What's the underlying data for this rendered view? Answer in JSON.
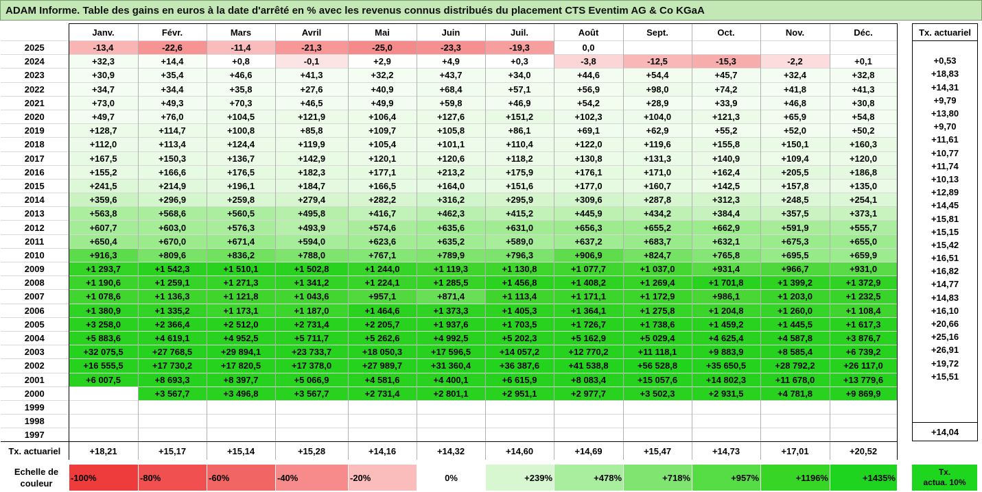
{
  "title": "ADAM Informe. Table des gains en euros à la date d'arrêté en % avec les revenus connus distribués du placement CTS Eventim AG & Co KGaA",
  "chart_data": {
    "type": "table",
    "months": [
      "Janv.",
      "Févr.",
      "Mars",
      "Avril",
      "Mai",
      "Juin",
      "Juil.",
      "Août",
      "Sept.",
      "Oct.",
      "Nov.",
      "Déc."
    ],
    "tx_header": "Tx. actuariel",
    "rows": [
      {
        "year": "2025",
        "cells": [
          "-13,4",
          "-22,6",
          "-11,4",
          "-21,3",
          "-25,0",
          "-23,3",
          "-19,3",
          "0,0",
          "",
          "",
          "",
          ""
        ],
        "v": [
          -13.4,
          -22.6,
          -11.4,
          -21.3,
          -25.0,
          -23.3,
          -19.3,
          0.0,
          null,
          null,
          null,
          null
        ],
        "tx": ""
      },
      {
        "year": "2024",
        "cells": [
          "+32,3",
          "+14,4",
          "+0,8",
          "-0,1",
          "+2,9",
          "+4,9",
          "+0,3",
          "-3,8",
          "-12,5",
          "-15,3",
          "-2,2",
          "+0,1"
        ],
        "v": [
          32.3,
          14.4,
          0.8,
          -0.1,
          2.9,
          4.9,
          0.3,
          -3.8,
          -12.5,
          -15.3,
          -2.2,
          0.1
        ],
        "tx": "+0,53"
      },
      {
        "year": "2023",
        "cells": [
          "+30,9",
          "+35,4",
          "+46,6",
          "+41,3",
          "+32,2",
          "+43,7",
          "+34,0",
          "+44,6",
          "+54,4",
          "+45,7",
          "+32,4",
          "+32,8"
        ],
        "v": [
          30.9,
          35.4,
          46.6,
          41.3,
          32.2,
          43.7,
          34.0,
          44.6,
          54.4,
          45.7,
          32.4,
          32.8
        ],
        "tx": "+18,83"
      },
      {
        "year": "2022",
        "cells": [
          "+34,7",
          "+34,4",
          "+35,8",
          "+27,6",
          "+40,9",
          "+68,4",
          "+57,1",
          "+56,9",
          "+98,0",
          "+74,2",
          "+41,8",
          "+41,3"
        ],
        "v": [
          34.7,
          34.4,
          35.8,
          27.6,
          40.9,
          68.4,
          57.1,
          56.9,
          98.0,
          74.2,
          41.8,
          41.3
        ],
        "tx": "+14,31"
      },
      {
        "year": "2021",
        "cells": [
          "+73,0",
          "+49,3",
          "+70,3",
          "+46,5",
          "+49,9",
          "+59,8",
          "+46,9",
          "+54,2",
          "+28,9",
          "+33,9",
          "+46,8",
          "+30,8"
        ],
        "v": [
          73.0,
          49.3,
          70.3,
          46.5,
          49.9,
          59.8,
          46.9,
          54.2,
          28.9,
          33.9,
          46.8,
          30.8
        ],
        "tx": "+9,79"
      },
      {
        "year": "2020",
        "cells": [
          "+49,7",
          "+76,0",
          "+104,5",
          "+121,9",
          "+106,4",
          "+127,6",
          "+151,2",
          "+102,3",
          "+104,0",
          "+121,3",
          "+65,9",
          "+54,8"
        ],
        "v": [
          49.7,
          76.0,
          104.5,
          121.9,
          106.4,
          127.6,
          151.2,
          102.3,
          104.0,
          121.3,
          65.9,
          54.8
        ],
        "tx": "+13,80"
      },
      {
        "year": "2019",
        "cells": [
          "+128,7",
          "+114,7",
          "+100,8",
          "+85,8",
          "+109,7",
          "+105,8",
          "+86,1",
          "+69,1",
          "+62,9",
          "+55,2",
          "+52,0",
          "+50,2"
        ],
        "v": [
          128.7,
          114.7,
          100.8,
          85.8,
          109.7,
          105.8,
          86.1,
          69.1,
          62.9,
          55.2,
          52.0,
          50.2
        ],
        "tx": "+9,70"
      },
      {
        "year": "2018",
        "cells": [
          "+112,0",
          "+113,4",
          "+124,4",
          "+119,9",
          "+105,4",
          "+101,1",
          "+110,4",
          "+122,0",
          "+119,6",
          "+155,8",
          "+150,1",
          "+160,3"
        ],
        "v": [
          112.0,
          113.4,
          124.4,
          119.9,
          105.4,
          101.1,
          110.4,
          122.0,
          119.6,
          155.8,
          150.1,
          160.3
        ],
        "tx": "+11,61"
      },
      {
        "year": "2017",
        "cells": [
          "+167,5",
          "+150,3",
          "+136,7",
          "+142,9",
          "+120,1",
          "+120,6",
          "+118,2",
          "+130,8",
          "+131,3",
          "+140,9",
          "+109,4",
          "+120,0"
        ],
        "v": [
          167.5,
          150.3,
          136.7,
          142.9,
          120.1,
          120.6,
          118.2,
          130.8,
          131.3,
          140.9,
          109.4,
          120.0
        ],
        "tx": "+10,77"
      },
      {
        "year": "2016",
        "cells": [
          "+155,2",
          "+166,6",
          "+176,5",
          "+182,3",
          "+177,1",
          "+213,2",
          "+175,9",
          "+176,1",
          "+171,0",
          "+162,4",
          "+205,5",
          "+186,8"
        ],
        "v": [
          155.2,
          166.6,
          176.5,
          182.3,
          177.1,
          213.2,
          175.9,
          176.1,
          171.0,
          162.4,
          205.5,
          186.8
        ],
        "tx": "+11,74"
      },
      {
        "year": "2015",
        "cells": [
          "+241,5",
          "+214,9",
          "+196,1",
          "+184,7",
          "+166,5",
          "+164,0",
          "+151,6",
          "+177,0",
          "+160,7",
          "+142,5",
          "+157,8",
          "+135,0"
        ],
        "v": [
          241.5,
          214.9,
          196.1,
          184.7,
          166.5,
          164.0,
          151.6,
          177.0,
          160.7,
          142.5,
          157.8,
          135.0
        ],
        "tx": "+10,13"
      },
      {
        "year": "2014",
        "cells": [
          "+359,6",
          "+296,9",
          "+259,8",
          "+279,4",
          "+282,2",
          "+316,2",
          "+295,9",
          "+309,6",
          "+287,8",
          "+312,3",
          "+248,5",
          "+254,1"
        ],
        "v": [
          359.6,
          296.9,
          259.8,
          279.4,
          282.2,
          316.2,
          295.9,
          309.6,
          287.8,
          312.3,
          248.5,
          254.1
        ],
        "tx": "+12,89"
      },
      {
        "year": "2013",
        "cells": [
          "+563,8",
          "+568,6",
          "+560,5",
          "+495,8",
          "+416,7",
          "+462,3",
          "+415,2",
          "+445,9",
          "+434,2",
          "+384,4",
          "+357,5",
          "+373,1"
        ],
        "v": [
          563.8,
          568.6,
          560.5,
          495.8,
          416.7,
          462.3,
          415.2,
          445.9,
          434.2,
          384.4,
          357.5,
          373.1
        ],
        "tx": "+14,45"
      },
      {
        "year": "2012",
        "cells": [
          "+607,7",
          "+603,0",
          "+576,3",
          "+493,9",
          "+574,6",
          "+635,6",
          "+631,0",
          "+656,3",
          "+655,2",
          "+662,9",
          "+591,9",
          "+555,7"
        ],
        "v": [
          607.7,
          603.0,
          576.3,
          493.9,
          574.6,
          635.6,
          631.0,
          656.3,
          655.2,
          662.9,
          591.9,
          555.7
        ],
        "tx": "+15,81"
      },
      {
        "year": "2011",
        "cells": [
          "+650,4",
          "+670,0",
          "+671,4",
          "+594,0",
          "+623,6",
          "+635,2",
          "+589,0",
          "+637,2",
          "+683,7",
          "+632,1",
          "+675,3",
          "+655,0"
        ],
        "v": [
          650.4,
          670.0,
          671.4,
          594.0,
          623.6,
          635.2,
          589.0,
          637.2,
          683.7,
          632.1,
          675.3,
          655.0
        ],
        "tx": "+15,15"
      },
      {
        "year": "2010",
        "cells": [
          "+916,3",
          "+809,6",
          "+836,2",
          "+788,0",
          "+767,1",
          "+789,9",
          "+796,3",
          "+906,9",
          "+824,7",
          "+765,8",
          "+695,5",
          "+659,9"
        ],
        "v": [
          916.3,
          809.6,
          836.2,
          788.0,
          767.1,
          789.9,
          796.3,
          906.9,
          824.7,
          765.8,
          695.5,
          659.9
        ],
        "tx": "+15,42"
      },
      {
        "year": "2009",
        "cells": [
          "+1 293,7",
          "+1 542,3",
          "+1 510,1",
          "+1 502,8",
          "+1 244,0",
          "+1 119,3",
          "+1 130,8",
          "+1 077,7",
          "+1 037,0",
          "+931,4",
          "+966,7",
          "+931,0"
        ],
        "v": [
          1293.7,
          1542.3,
          1510.1,
          1502.8,
          1244.0,
          1119.3,
          1130.8,
          1077.7,
          1037.0,
          931.4,
          966.7,
          931.0
        ],
        "tx": "+16,51"
      },
      {
        "year": "2008",
        "cells": [
          "+1 190,6",
          "+1 259,1",
          "+1 271,3",
          "+1 341,2",
          "+1 224,1",
          "+1 285,5",
          "+1 456,8",
          "+1 408,2",
          "+1 269,4",
          "+1 701,8",
          "+1 399,2",
          "+1 372,9"
        ],
        "v": [
          1190.6,
          1259.1,
          1271.3,
          1341.2,
          1224.1,
          1285.5,
          1456.8,
          1408.2,
          1269.4,
          1701.8,
          1399.2,
          1372.9
        ],
        "tx": "+16,82"
      },
      {
        "year": "2007",
        "cells": [
          "+1 078,6",
          "+1 136,3",
          "+1 121,8",
          "+1 043,6",
          "+957,1",
          "+871,4",
          "+1 113,4",
          "+1 171,1",
          "+1 172,9",
          "+986,1",
          "+1 203,0",
          "+1 232,5"
        ],
        "v": [
          1078.6,
          1136.3,
          1121.8,
          1043.6,
          957.1,
          871.4,
          1113.4,
          1171.1,
          1172.9,
          986.1,
          1203.0,
          1232.5
        ],
        "tx": "+14,77"
      },
      {
        "year": "2006",
        "cells": [
          "+1 380,9",
          "+1 335,2",
          "+1 173,1",
          "+1 187,0",
          "+1 464,6",
          "+1 373,3",
          "+1 405,3",
          "+1 364,1",
          "+1 275,8",
          "+1 204,8",
          "+1 260,0",
          "+1 108,4"
        ],
        "v": [
          1380.9,
          1335.2,
          1173.1,
          1187.0,
          1464.6,
          1373.3,
          1405.3,
          1364.1,
          1275.8,
          1204.8,
          1260.0,
          1108.4
        ],
        "tx": "+14,83"
      },
      {
        "year": "2005",
        "cells": [
          "+3 258,0",
          "+2 366,4",
          "+2 512,0",
          "+2 731,4",
          "+2 205,7",
          "+1 937,6",
          "+1 703,5",
          "+1 726,7",
          "+1 738,6",
          "+1 459,2",
          "+1 445,5",
          "+1 617,3"
        ],
        "v": [
          3258.0,
          2366.4,
          2512.0,
          2731.4,
          2205.7,
          1937.6,
          1703.5,
          1726.7,
          1738.6,
          1459.2,
          1445.5,
          1617.3
        ],
        "tx": "+16,10"
      },
      {
        "year": "2004",
        "cells": [
          "+5 883,6",
          "+4 619,1",
          "+4 952,5",
          "+5 711,7",
          "+5 262,6",
          "+4 992,5",
          "+5 202,3",
          "+5 162,9",
          "+5 029,4",
          "+4 625,4",
          "+4 587,8",
          "+3 876,7"
        ],
        "v": [
          5883.6,
          4619.1,
          4952.5,
          5711.7,
          5262.6,
          4992.5,
          5202.3,
          5162.9,
          5029.4,
          4625.4,
          4587.8,
          3876.7
        ],
        "tx": "+20,66"
      },
      {
        "year": "2003",
        "cells": [
          "+32 075,5",
          "+27 768,5",
          "+29 894,1",
          "+23 733,7",
          "+18 050,3",
          "+17 596,5",
          "+14 057,2",
          "+12 770,2",
          "+11 118,1",
          "+9 883,9",
          "+8 585,4",
          "+6 739,2"
        ],
        "v": [
          32075.5,
          27768.5,
          29894.1,
          23733.7,
          18050.3,
          17596.5,
          14057.2,
          12770.2,
          11118.1,
          9883.9,
          8585.4,
          6739.2
        ],
        "tx": "+25,16"
      },
      {
        "year": "2002",
        "cells": [
          "+16 555,5",
          "+17 730,2",
          "+17 820,5",
          "+17 378,0",
          "+27 989,7",
          "+31 360,4",
          "+36 387,6",
          "+41 538,8",
          "+56 528,8",
          "+35 650,5",
          "+28 792,2",
          "+26 117,0"
        ],
        "v": [
          16555.5,
          17730.2,
          17820.5,
          17378.0,
          27989.7,
          31360.4,
          36387.6,
          41538.8,
          56528.8,
          35650.5,
          28792.2,
          26117.0
        ],
        "tx": "+26,91"
      },
      {
        "year": "2001",
        "cells": [
          "+6 007,5",
          "+8 693,3",
          "+8 397,7",
          "+5 066,9",
          "+4 581,6",
          "+4 400,1",
          "+6 615,9",
          "+8 083,4",
          "+15 057,6",
          "+14 802,3",
          "+11 678,0",
          "+13 779,6"
        ],
        "v": [
          6007.5,
          8693.3,
          8397.7,
          5066.9,
          4581.6,
          4400.1,
          6615.9,
          8083.4,
          15057.6,
          14802.3,
          11678.0,
          13779.6
        ],
        "tx": "+19,72"
      },
      {
        "year": "2000",
        "cells": [
          "",
          "+3 567,7",
          "+3 496,8",
          "+3 567,7",
          "+2 731,4",
          "+2 801,1",
          "+2 951,1",
          "+2 977,7",
          "+3 502,3",
          "+2 931,5",
          "+4 781,8",
          "+9 869,9"
        ],
        "v": [
          null,
          3567.7,
          3496.8,
          3567.7,
          2731.4,
          2801.1,
          2951.1,
          2977.7,
          3502.3,
          2931.5,
          4781.8,
          9869.9
        ],
        "tx": "+15,51"
      },
      {
        "year": "1999",
        "cells": [
          "",
          "",
          "",
          "",
          "",
          "",
          "",
          "",
          "",
          "",
          "",
          ""
        ],
        "v": [
          null,
          null,
          null,
          null,
          null,
          null,
          null,
          null,
          null,
          null,
          null,
          null
        ],
        "tx": ""
      },
      {
        "year": "1998",
        "cells": [
          "",
          "",
          "",
          "",
          "",
          "",
          "",
          "",
          "",
          "",
          "",
          ""
        ],
        "v": [
          null,
          null,
          null,
          null,
          null,
          null,
          null,
          null,
          null,
          null,
          null,
          null
        ],
        "tx": ""
      },
      {
        "year": "1997",
        "cells": [
          "",
          "",
          "",
          "",
          "",
          "",
          "",
          "",
          "",
          "",
          "",
          ""
        ],
        "v": [
          null,
          null,
          null,
          null,
          null,
          null,
          null,
          null,
          null,
          null,
          null,
          null
        ],
        "tx": ""
      }
    ],
    "footer": {
      "label": "Tx. actuariel",
      "cells": [
        "+18,21",
        "+15,17",
        "+15,14",
        "+15,28",
        "+14,16",
        "+14,32",
        "+14,60",
        "+14,69",
        "+15,47",
        "+14,73",
        "+17,01",
        "+20,52"
      ],
      "tx": "+14,04"
    },
    "legend": {
      "label": [
        "Echelle de",
        "couleur"
      ],
      "items": [
        {
          "text": "-100%",
          "color": "#ee3b3b",
          "kind": "neg"
        },
        {
          "text": "-80%",
          "color": "#f05050",
          "kind": "neg"
        },
        {
          "text": "-60%",
          "color": "#f26565",
          "kind": "neg"
        },
        {
          "text": "-40%",
          "color": "#f78a8a",
          "kind": "neg"
        },
        {
          "text": "-20%",
          "color": "#fbbcbc",
          "kind": "neg"
        },
        {
          "text": "0%",
          "color": "#ffffff",
          "kind": "zero"
        },
        {
          "text": "+239%",
          "color": "#d6f7d0",
          "kind": "pos"
        },
        {
          "text": "+478%",
          "color": "#a9ee9e",
          "kind": "pos"
        },
        {
          "text": "+718%",
          "color": "#7fe570",
          "kind": "pos"
        },
        {
          "text": "+957%",
          "color": "#56dc45",
          "kind": "pos"
        },
        {
          "text": "+1196%",
          "color": "#37d626",
          "kind": "pos"
        },
        {
          "text": "+1435%",
          "color": "#1ed41e",
          "kind": "pos"
        }
      ],
      "tx_text": [
        "Tx.",
        "actua. 10%"
      ],
      "tx_color": "#1fd61f"
    }
  }
}
